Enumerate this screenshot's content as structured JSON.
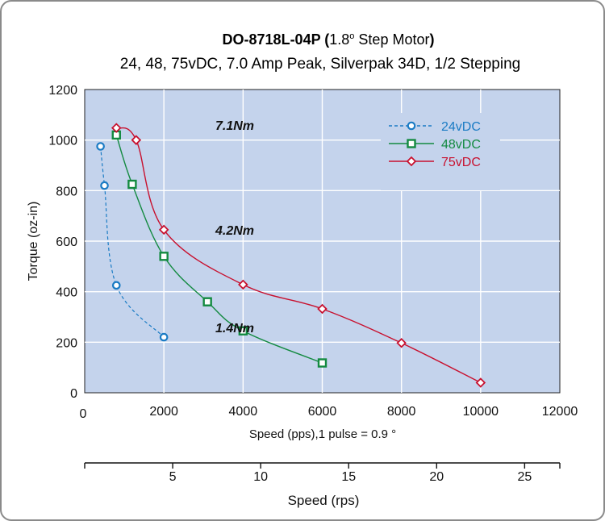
{
  "chart_data": {
    "type": "line",
    "title_model": "DO-8718L-04P",
    "title_paren_open": " (",
    "title_angle_value": "1.8",
    "title_degree": "o",
    "title_paren_text": " Step Motor",
    "title_paren_close": ")",
    "subtitle": "24, 48, 75vDC, 7.0 Amp Peak, Silverpak 34D, 1/2 Stepping",
    "xlabel": "Speed (pps),1 pulse = 0.9  °",
    "ylabel": "Torque (oz-in)",
    "x2label": "Speed (rps)",
    "xlim": [
      0,
      12000
    ],
    "ylim": [
      0,
      1200
    ],
    "xticks": [
      2000,
      4000,
      6000,
      8000,
      10000,
      12000
    ],
    "xtick_labels": [
      "2000",
      "4000",
      "6000",
      "8000",
      "10000",
      "12000"
    ],
    "x_origin_label": "0",
    "yticks": [
      0,
      200,
      400,
      600,
      800,
      1000,
      1200
    ],
    "ytick_labels": [
      "0",
      "200",
      "400",
      "600",
      "800",
      "1000",
      "1200"
    ],
    "x2lim": [
      0,
      27
    ],
    "x2ticks": [
      5,
      10,
      15,
      20,
      25
    ],
    "x2tick_labels": [
      "5",
      "10",
      "15",
      "20",
      "25"
    ],
    "grid": true,
    "legend_position": "top-right",
    "series": [
      {
        "name": "24vDC",
        "color": "#1a7bc4",
        "marker": "circle",
        "dashed": true,
        "x": [
          400,
          500,
          800,
          2000
        ],
        "y": [
          975,
          820,
          425,
          220
        ]
      },
      {
        "name": "48vDC",
        "color": "#138a40",
        "marker": "square",
        "dashed": false,
        "x": [
          800,
          1200,
          2000,
          3100,
          4000,
          6000
        ],
        "y": [
          1020,
          825,
          540,
          360,
          245,
          118
        ]
      },
      {
        "name": "75vDC",
        "color": "#c8102e",
        "marker": "diamond",
        "dashed": false,
        "x": [
          800,
          1300,
          2000,
          4000,
          6000,
          8000,
          10000
        ],
        "y": [
          1048,
          1000,
          645,
          428,
          332,
          197,
          40
        ]
      }
    ],
    "annotations": [
      {
        "text": "7.1Nm",
        "x": 3300,
        "y": 1040
      },
      {
        "text": "4.2Nm",
        "x": 3300,
        "y": 625
      },
      {
        "text": "1.4Nm",
        "x": 3300,
        "y": 240
      }
    ]
  }
}
